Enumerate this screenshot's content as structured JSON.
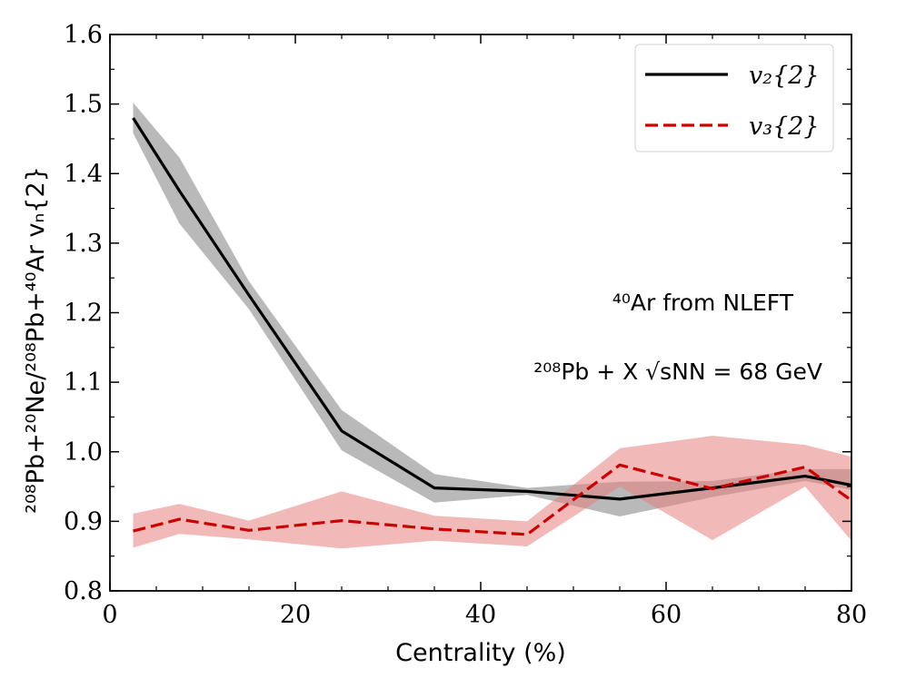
{
  "chart_data": {
    "type": "line",
    "xlabel": "Centrality (%)",
    "ylabel": "²⁰⁸Pb+²⁰Ne/²⁰⁸Pb+⁴⁰Ar vₙ{2}",
    "xlim": [
      0,
      80
    ],
    "ylim": [
      0.8,
      1.6
    ],
    "xticks": [
      0,
      20,
      40,
      60,
      80
    ],
    "yticks": [
      0.8,
      0.9,
      1.0,
      1.1,
      1.2,
      1.3,
      1.4,
      1.5,
      1.6
    ],
    "xtick_labels": [
      "0",
      "20",
      "40",
      "60",
      "80"
    ],
    "ytick_labels": [
      "0.8",
      "0.9",
      "1.0",
      "1.1",
      "1.2",
      "1.3",
      "1.4",
      "1.5",
      "1.6"
    ],
    "annotations": [
      "⁴⁰Ar from NLEFT",
      "²⁰⁸Pb + X √sNN = 68 GeV"
    ],
    "legend_position": "top-right",
    "series": [
      {
        "name": "v₂{2}",
        "style": "solid",
        "color": "#000000",
        "band_color": "#808080",
        "x": [
          2.5,
          7.5,
          15,
          25,
          35,
          45,
          55,
          65,
          75,
          80
        ],
        "values": [
          1.48,
          1.375,
          1.225,
          1.03,
          0.948,
          0.943,
          0.932,
          0.948,
          0.965,
          0.952
        ],
        "lower": [
          1.458,
          1.328,
          1.205,
          1.002,
          0.927,
          0.938,
          0.907,
          0.935,
          0.958,
          0.945
        ],
        "upper": [
          1.502,
          1.423,
          1.245,
          1.06,
          0.968,
          0.948,
          0.957,
          0.958,
          0.975,
          0.975
        ]
      },
      {
        "name": "v₃{2}",
        "style": "dashed",
        "color": "#cc0000",
        "band_color": "#e88080",
        "x": [
          2.5,
          7.5,
          15,
          25,
          35,
          45,
          55,
          65,
          75,
          80
        ],
        "values": [
          0.886,
          0.903,
          0.887,
          0.901,
          0.889,
          0.881,
          0.981,
          0.947,
          0.978,
          0.93
        ],
        "lower": [
          0.862,
          0.882,
          0.874,
          0.861,
          0.872,
          0.864,
          0.95,
          0.873,
          0.95,
          0.872
        ],
        "upper": [
          0.911,
          0.925,
          0.901,
          0.943,
          0.908,
          0.9,
          1.005,
          1.023,
          1.01,
          0.993
        ]
      }
    ]
  }
}
